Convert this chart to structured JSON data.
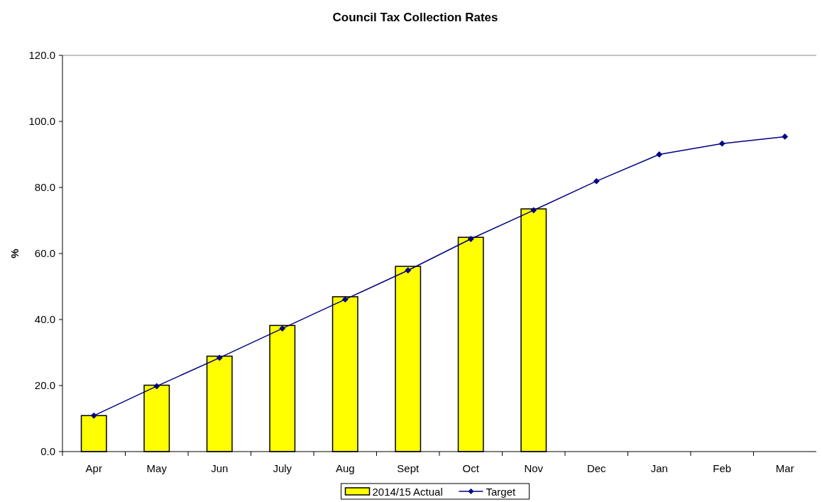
{
  "chart_data": {
    "type": "bar",
    "title": "Council Tax Collection Rates",
    "ylabel": "%",
    "categories": [
      "Apr",
      "May",
      "Jun",
      "July",
      "Aug",
      "Sept",
      "Oct",
      "Nov",
      "Dec",
      "Jan",
      "Feb",
      "Mar"
    ],
    "series": [
      {
        "name": "2014/15 Actual",
        "color": "#ffff00",
        "values": [
          10.9,
          20.1,
          28.9,
          38.2,
          46.9,
          56.1,
          64.9,
          73.5,
          null,
          null,
          null,
          null
        ]
      },
      {
        "name": "Target",
        "type": "line",
        "color": "#000080",
        "marker": "diamond",
        "values": [
          10.9,
          19.8,
          28.4,
          37.3,
          46.1,
          54.9,
          64.4,
          73.1,
          81.9,
          90.0,
          93.3,
          95.4
        ]
      }
    ],
    "ylim": [
      0,
      120
    ],
    "yticks": [
      {
        "value": 0,
        "label": "0.0"
      },
      {
        "value": 20,
        "label": "20.0"
      },
      {
        "value": 40,
        "label": "40.0"
      },
      {
        "value": 60,
        "label": "60.0"
      },
      {
        "value": 80,
        "label": "80.0"
      },
      {
        "value": 100,
        "label": "100.0"
      },
      {
        "value": 120,
        "label": "120.0"
      }
    ],
    "legend": "bottom"
  }
}
